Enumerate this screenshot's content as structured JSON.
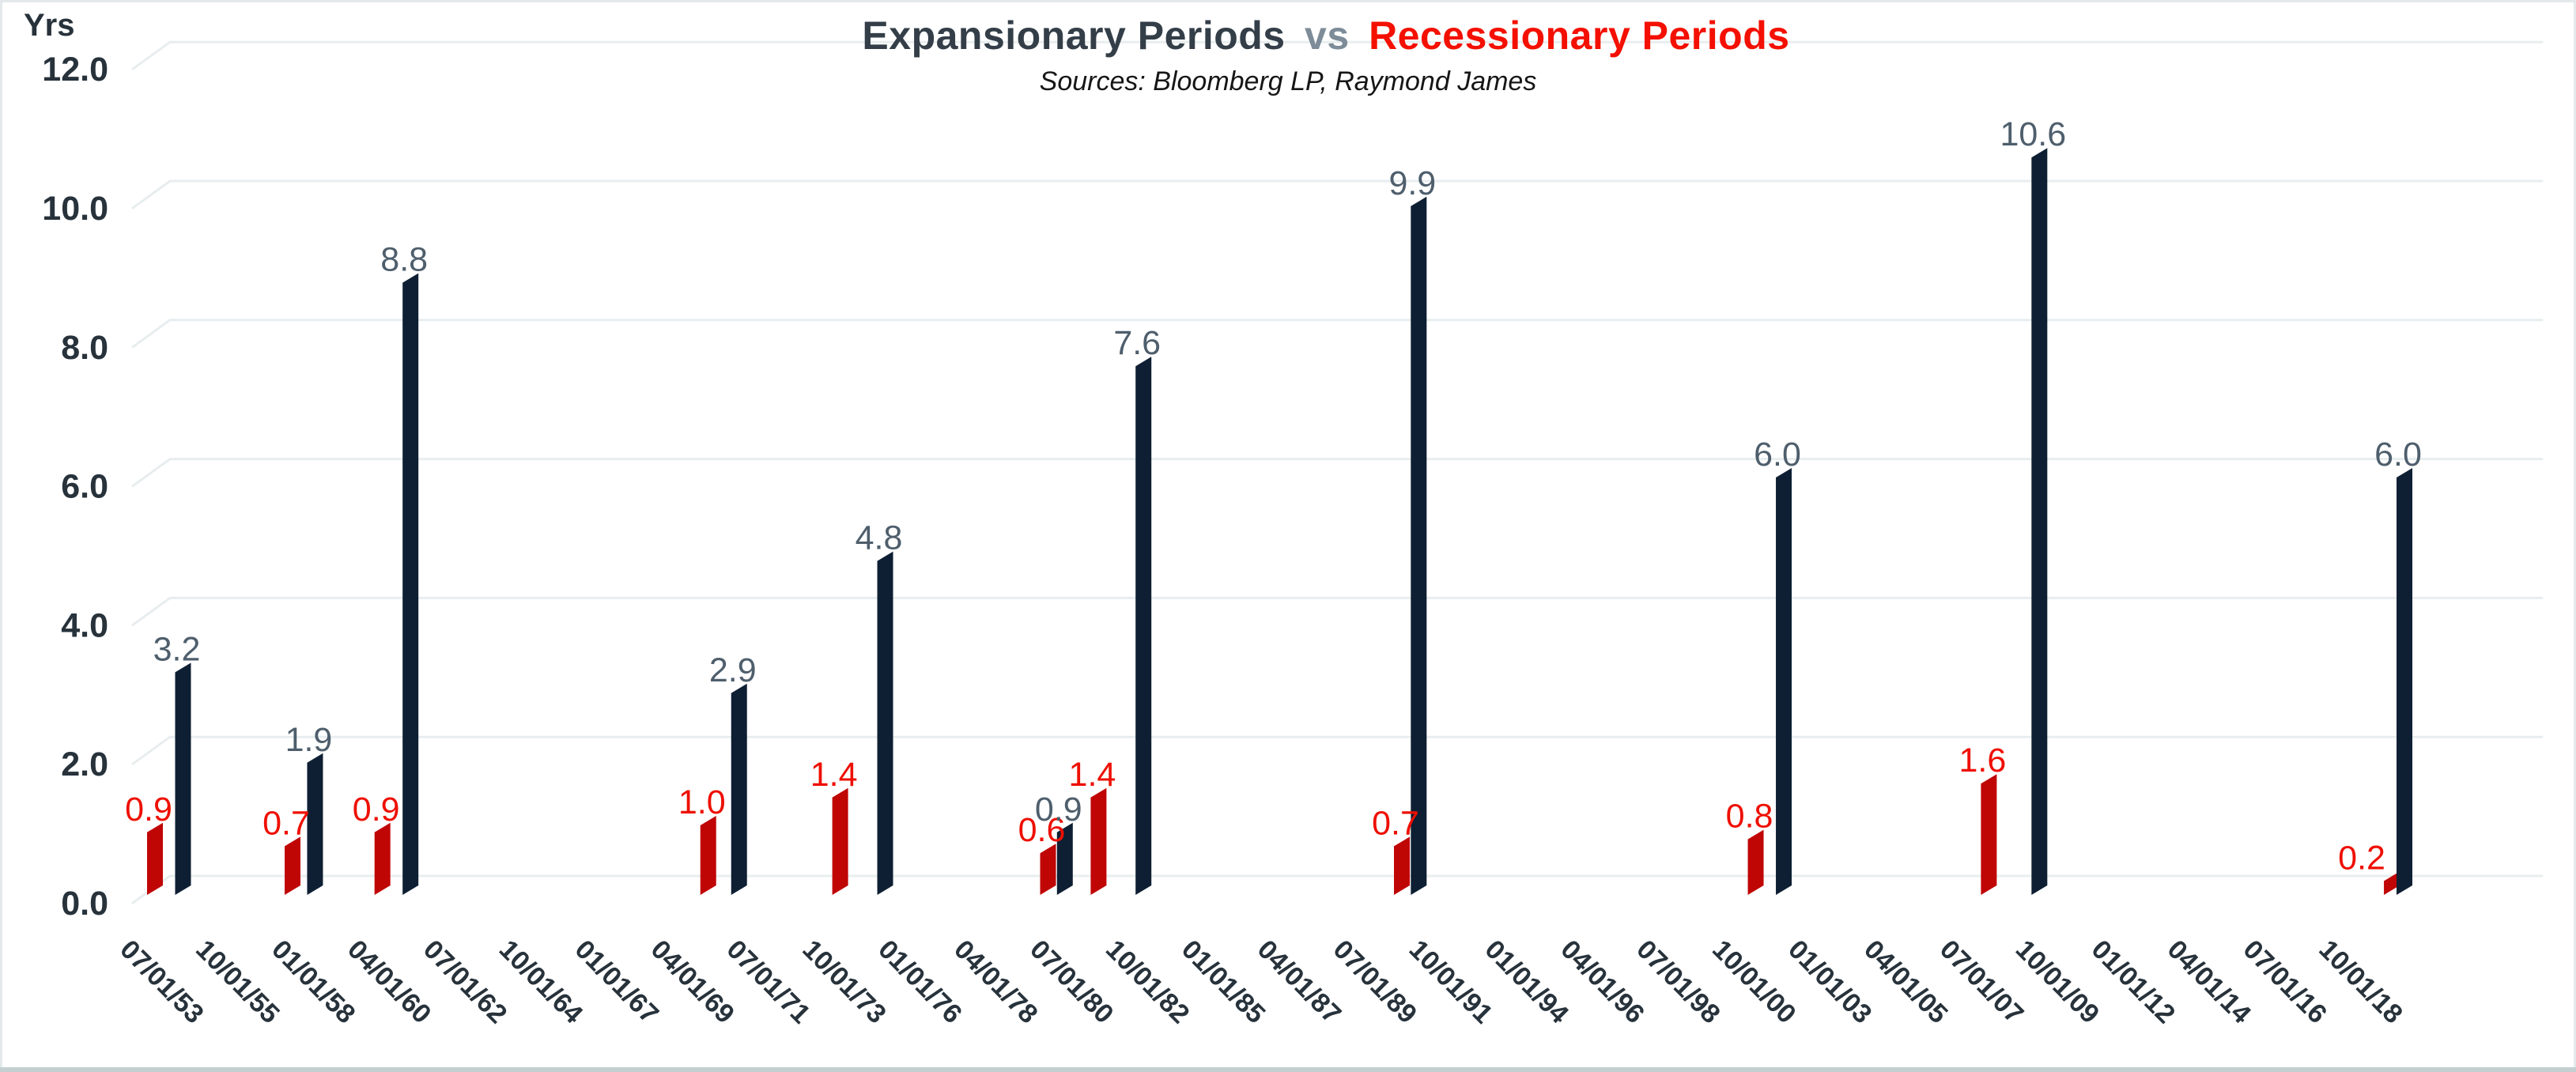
{
  "header": {
    "title_expansionary": "Expansionary Periods",
    "title_vs": "vs",
    "title_recessionary": "Recessionary Periods",
    "subtitle": "Sources: Bloomberg LP, Raymond James"
  },
  "chart_data": {
    "type": "bar",
    "style": "3d-oblique-columns",
    "title": "Expansionary Periods vs Recessionary Periods",
    "subtitle": "Sources: Bloomberg LP, Raymond James",
    "ylabel": "Yrs",
    "xlabel": "",
    "ylim": [
      0,
      12
    ],
    "ytick_step": 2,
    "ytick_labels": [
      "0.0",
      "2.0",
      "4.0",
      "6.0",
      "8.0",
      "10.0",
      "12.0"
    ],
    "grid": true,
    "legend": "none (series identified by title colors)",
    "x_axis": {
      "unit": "quarters offset from first tick 07/01/53",
      "ticks_every_quarters": 9,
      "tick_labels": [
        "07/01/53",
        "10/01/55",
        "01/01/58",
        "04/01/60",
        "07/01/62",
        "10/01/64",
        "01/01/67",
        "04/01/69",
        "07/01/71",
        "10/01/73",
        "01/01/76",
        "04/01/78",
        "07/01/80",
        "10/01/82",
        "01/01/85",
        "04/01/87",
        "07/01/89",
        "10/01/91",
        "01/01/94",
        "04/01/96",
        "07/01/98",
        "10/01/00",
        "01/01/03",
        "04/01/05",
        "07/01/07",
        "10/01/09",
        "01/01/12",
        "04/01/14",
        "07/01/16",
        "10/01/18"
      ]
    },
    "colors": {
      "recession_bar": "#c00505",
      "recession_label": "#ee0f00",
      "expansion_bar": "#0e1f33",
      "expansion_label": "#4e5e6c",
      "axis_text": "#27323b",
      "gridline": "#e8edef",
      "title_dark": "#333e48",
      "title_vs": "#7d8c98",
      "title_red": "#f41000",
      "bottom_rule": "#c3cfd0"
    },
    "series": [
      {
        "name": "Recessionary Periods",
        "bar_color": "#c00505",
        "label_color": "#ee0f00",
        "points": [
          {
            "q": 0,
            "value": 0.9,
            "label": "0.9"
          },
          {
            "q": 16.33,
            "value": 0.7,
            "label": "0.7"
          },
          {
            "q": 27,
            "value": 0.9,
            "label": "0.9"
          },
          {
            "q": 65.67,
            "value": 1.0,
            "label": "1.0"
          },
          {
            "q": 81.33,
            "value": 1.4,
            "label": "1.4"
          },
          {
            "q": 106,
            "value": 0.6,
            "label": "0.6"
          },
          {
            "q": 112,
            "value": 1.4,
            "label": "1.4"
          },
          {
            "q": 148,
            "value": 0.7,
            "label": "0.7"
          },
          {
            "q": 190,
            "value": 0.8,
            "label": "0.8"
          },
          {
            "q": 217.67,
            "value": 1.6,
            "label": "1.6"
          },
          {
            "q": 265.5,
            "value": 0.2,
            "label": "0.2",
            "label_dx": -30
          }
        ]
      },
      {
        "name": "Expansionary Periods",
        "bar_color": "#0e1f33",
        "label_color": "#4e5e6c",
        "points": [
          {
            "q": 3.33,
            "value": 3.2,
            "label": "3.2"
          },
          {
            "q": 19,
            "value": 1.9,
            "label": "1.9"
          },
          {
            "q": 30.33,
            "value": 8.8,
            "label": "8.8"
          },
          {
            "q": 69.33,
            "value": 2.9,
            "label": "2.9"
          },
          {
            "q": 86.67,
            "value": 4.8,
            "label": "4.8"
          },
          {
            "q": 108,
            "value": 0.9,
            "label": "0.9"
          },
          {
            "q": 117.33,
            "value": 7.6,
            "label": "7.6"
          },
          {
            "q": 150,
            "value": 9.9,
            "label": "9.9"
          },
          {
            "q": 193.33,
            "value": 6.0,
            "label": "6.0"
          },
          {
            "q": 223.67,
            "value": 10.6,
            "label": "10.6"
          },
          {
            "q": 267,
            "value": 6.0,
            "label": "6.0"
          }
        ]
      }
    ]
  }
}
